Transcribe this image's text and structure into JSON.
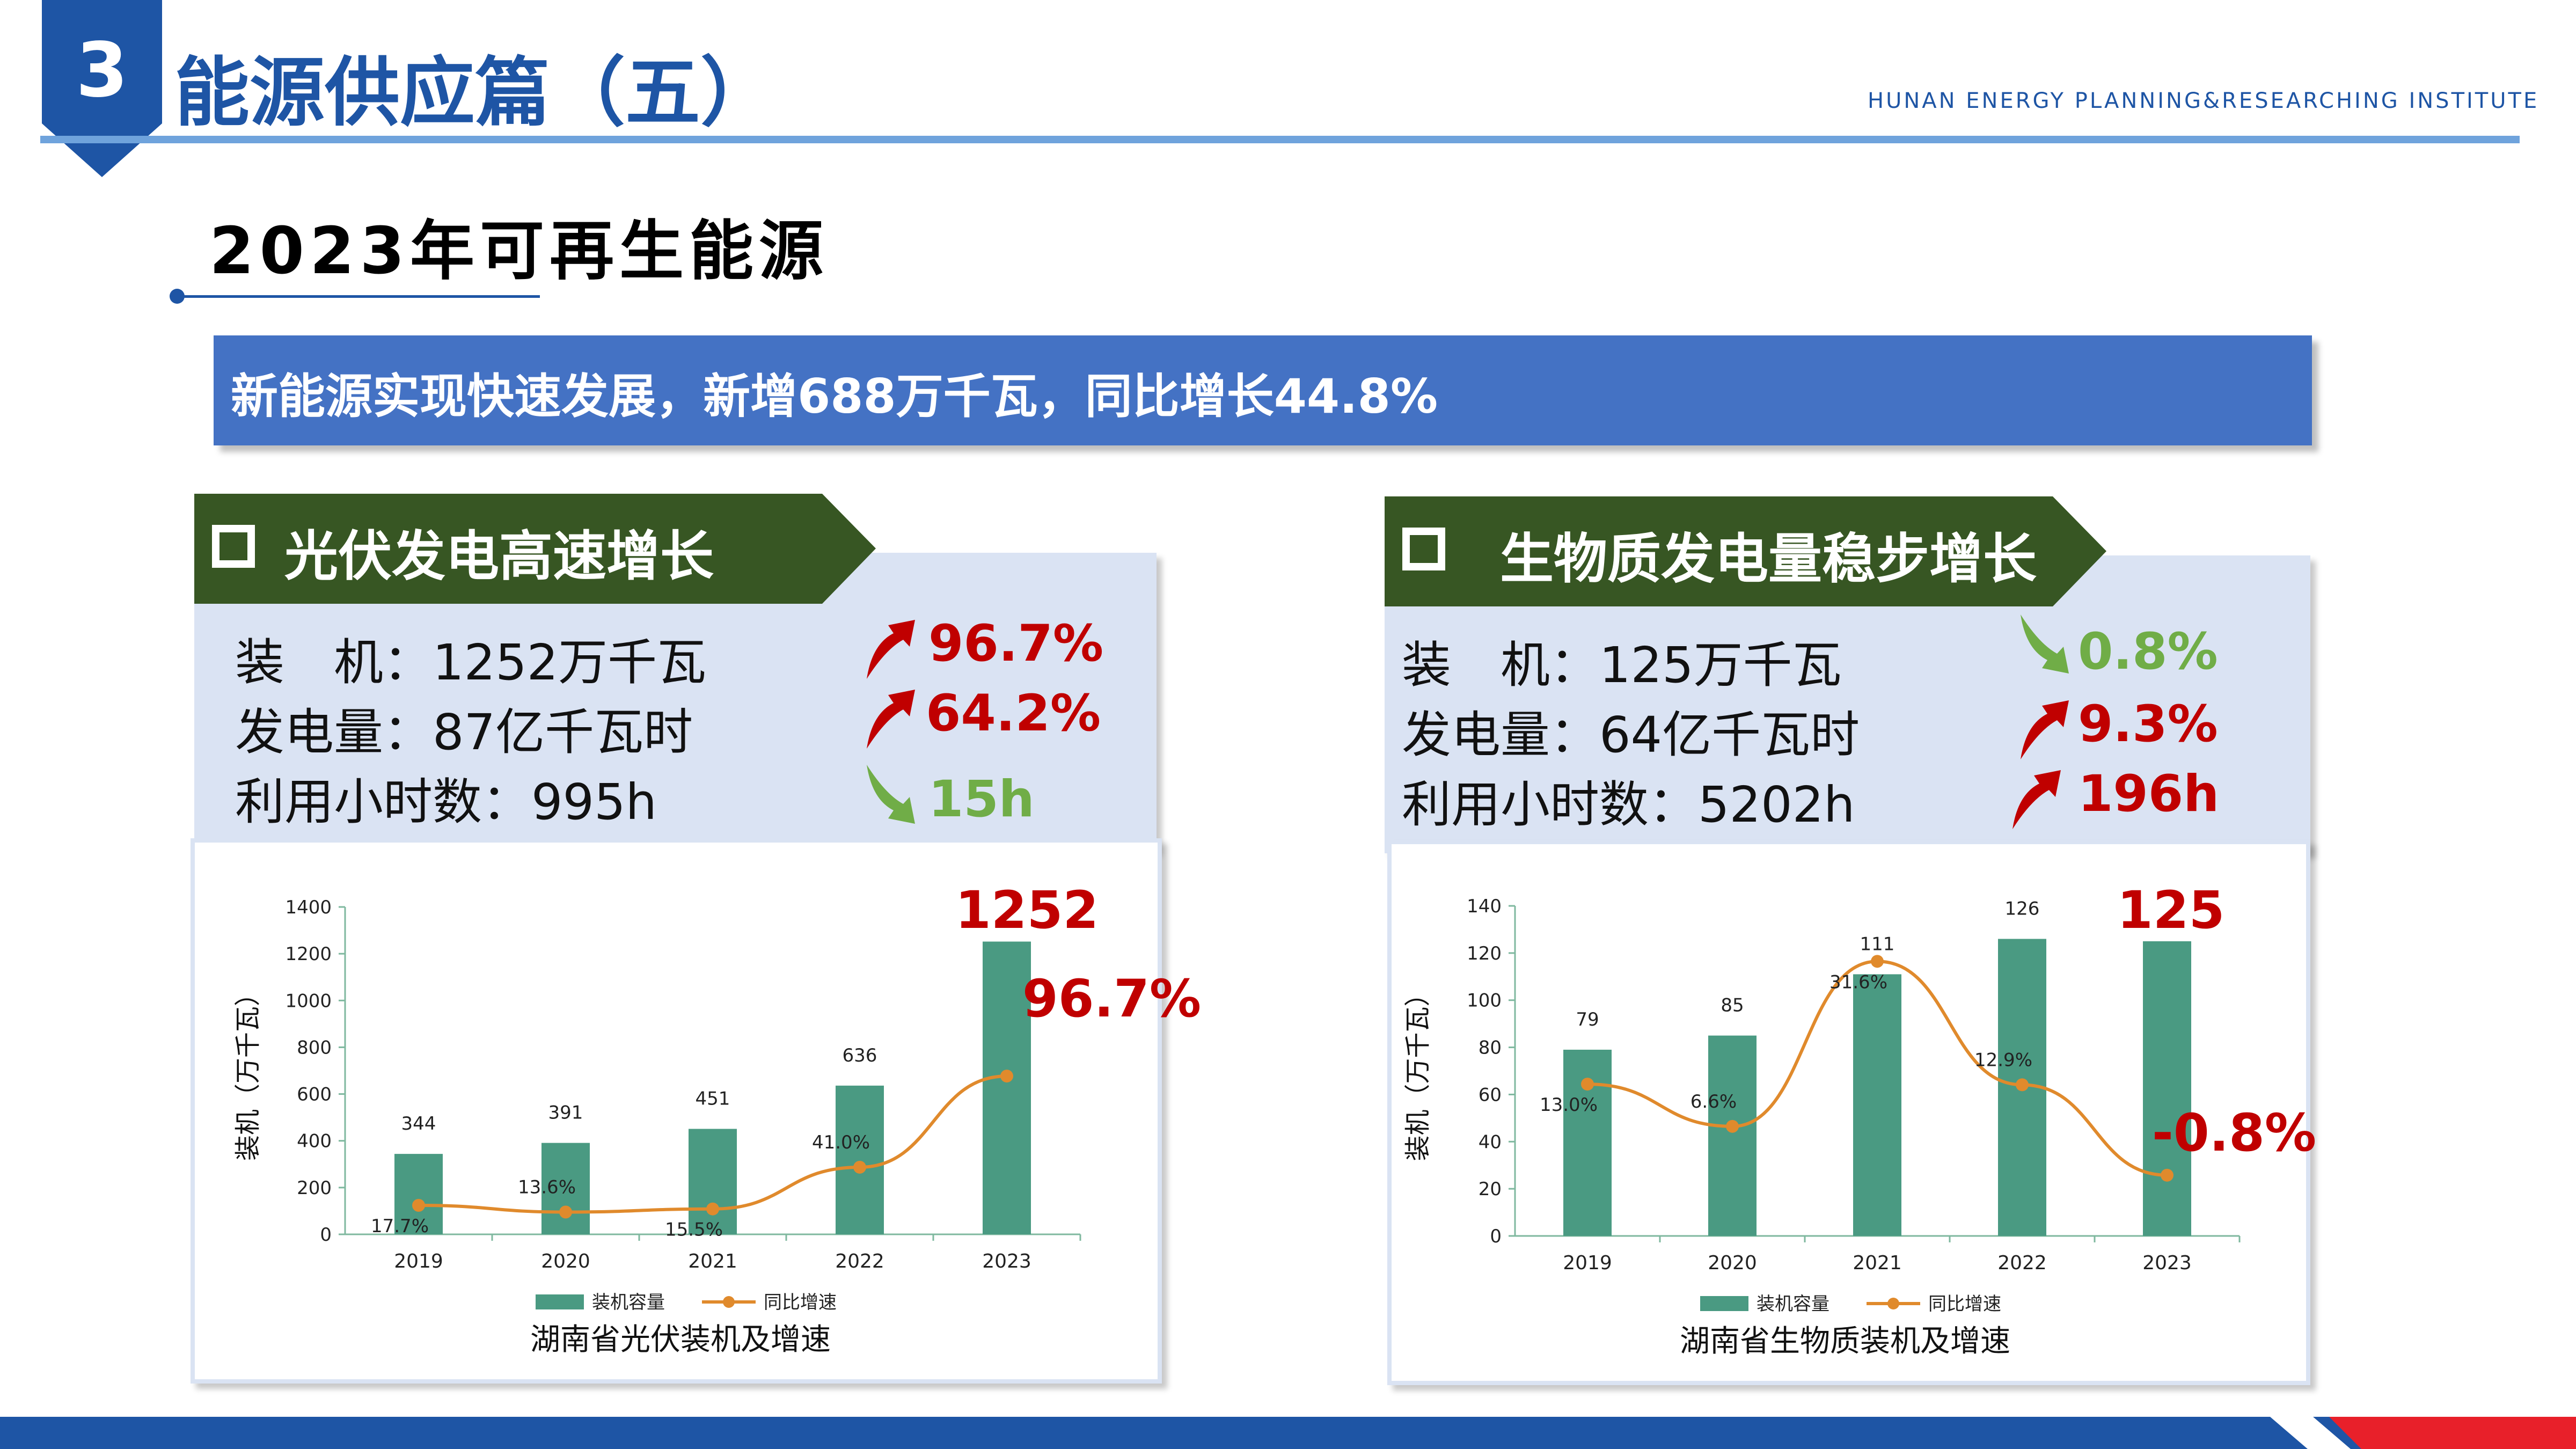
{
  "header": {
    "section_number": "3",
    "title": "能源供应篇（五）",
    "institute": "HUNAN ENERGY PLANNING&RESEARCHING INSTITUTE"
  },
  "section_title": "2023年可再生能源",
  "banner": "新能源实现快速发展，新增688万千瓦，同比增长44.8%",
  "panels": [
    {
      "tag": "光伏发电高速增长",
      "stats": [
        {
          "label": "装　机：1252万千瓦",
          "change": "96.7%",
          "direction": "up"
        },
        {
          "label": "发电量：87亿千瓦时",
          "change": "64.2%",
          "direction": "up"
        },
        {
          "label": "利用小时数：995h",
          "change": "15h",
          "direction": "down"
        }
      ],
      "highlight_value": "1252",
      "highlight_pct": "96.7%"
    },
    {
      "tag": "生物质发电量稳步增长",
      "stats": [
        {
          "label": "装　机：125万千瓦",
          "change": "0.8%",
          "direction": "down"
        },
        {
          "label": "发电量：64亿千瓦时",
          "change": "9.3%",
          "direction": "up"
        },
        {
          "label": "利用小时数：5202h",
          "change": "196h",
          "direction": "up"
        }
      ],
      "highlight_value": "125",
      "highlight_pct": "-0.8%"
    }
  ],
  "colors": {
    "bar": "#4a9a82",
    "line": "#e08a2c",
    "tag": "#375623",
    "up": "#c00000",
    "down": "#70ad47",
    "accent": "#1e55a5"
  },
  "chart_data": [
    {
      "type": "bar",
      "title": "湖南省光伏装机及增速",
      "ylabel": "装机（万千瓦）",
      "categories": [
        "2019",
        "2020",
        "2021",
        "2022",
        "2023"
      ],
      "ylim": [
        0,
        1400
      ],
      "yticks": [
        0,
        200,
        400,
        600,
        800,
        1000,
        1200,
        1400
      ],
      "series": [
        {
          "name": "装机容量",
          "type": "bar",
          "values": [
            344,
            391,
            451,
            636,
            1252
          ],
          "labels": [
            "344",
            "391",
            "451",
            "636",
            ""
          ]
        },
        {
          "name": "同比增速",
          "type": "line",
          "values": [
            17.7,
            13.6,
            15.5,
            41.0,
            96.7
          ],
          "labels": [
            "17.7%",
            "13.6%",
            "15.5%",
            "41.0%",
            ""
          ]
        }
      ]
    },
    {
      "type": "bar",
      "title": "湖南省生物质装机及增速",
      "ylabel": "装机（万千瓦）",
      "categories": [
        "2019",
        "2020",
        "2021",
        "2022",
        "2023"
      ],
      "ylim": [
        0,
        140
      ],
      "yticks": [
        0,
        20,
        40,
        60,
        80,
        100,
        120,
        140
      ],
      "series": [
        {
          "name": "装机容量",
          "type": "bar",
          "values": [
            79,
            85,
            111,
            126,
            125
          ],
          "labels": [
            "79",
            "85",
            "111",
            "126",
            ""
          ]
        },
        {
          "name": "同比增速",
          "type": "line",
          "values": [
            13.0,
            6.6,
            31.6,
            12.9,
            -0.8
          ],
          "labels": [
            "13.0%",
            "6.6%",
            "31.6%",
            "12.9%",
            ""
          ]
        }
      ]
    }
  ]
}
